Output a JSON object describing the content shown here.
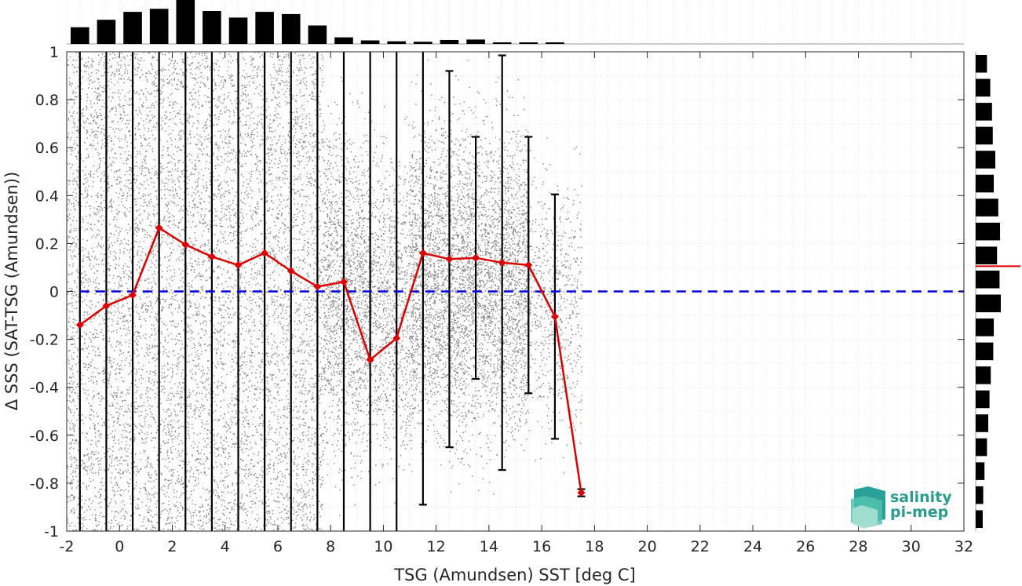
{
  "chart_data": {
    "type": "scatter",
    "xlabel": "TSG (Amundsen) SST [deg C]",
    "ylabel": "Δ SSS (SAT-TSG (Amundsen))",
    "xlim": [
      -2,
      32
    ],
    "ylim": [
      -1,
      1
    ],
    "x_ticks": [
      "-2",
      "0",
      "2",
      "4",
      "6",
      "8",
      "10",
      "12",
      "14",
      "16",
      "18",
      "20",
      "22",
      "24",
      "26",
      "28",
      "30",
      "32"
    ],
    "y_ticks": [
      "1",
      "0.8",
      "0.6",
      "0.4",
      "0.2",
      "0",
      "-0.2",
      "-0.4",
      "-0.6",
      "-0.8",
      "-1"
    ],
    "grid": true,
    "zero_line": {
      "y": 0,
      "color": "#0000dd",
      "style": "dashed"
    },
    "scatter_color": "#808080",
    "mean_color": "#dd0000",
    "error_bar_color": "#000000",
    "mean_series": {
      "x": [
        -1.5,
        -0.5,
        0.5,
        1.5,
        2.5,
        3.5,
        4.5,
        5.5,
        6.5,
        7.5,
        8.5,
        9.5,
        10.5,
        11.5,
        12.5,
        13.5,
        14.5,
        15.5,
        16.5,
        17.5
      ],
      "y": [
        -0.14,
        -0.06,
        -0.015,
        0.265,
        0.195,
        0.145,
        0.11,
        0.16,
        0.085,
        0.02,
        0.04,
        -0.285,
        -0.195,
        0.16,
        0.135,
        0.14,
        0.12,
        0.11,
        -0.105,
        -0.84
      ]
    },
    "error_bars": [
      {
        "x": -1.5,
        "low": -1,
        "high": 1
      },
      {
        "x": -0.5,
        "low": -1,
        "high": 1
      },
      {
        "x": 0.5,
        "low": -1,
        "high": 1
      },
      {
        "x": 1.5,
        "low": -1,
        "high": 1
      },
      {
        "x": 2.5,
        "low": -1,
        "high": 1
      },
      {
        "x": 3.5,
        "low": -1,
        "high": 1
      },
      {
        "x": 4.5,
        "low": -1,
        "high": 1
      },
      {
        "x": 5.5,
        "low": -1,
        "high": 1
      },
      {
        "x": 6.5,
        "low": -1,
        "high": 1
      },
      {
        "x": 7.5,
        "low": -1,
        "high": 1
      },
      {
        "x": 8.5,
        "low": -1,
        "high": 1
      },
      {
        "x": 9.5,
        "low": -1,
        "high": 1
      },
      {
        "x": 10.5,
        "low": -1,
        "high": 1
      },
      {
        "x": 11.5,
        "low": -0.89,
        "high": 1
      },
      {
        "x": 12.5,
        "low": -0.65,
        "high": 0.92
      },
      {
        "x": 13.5,
        "low": -0.365,
        "high": 0.645
      },
      {
        "x": 14.5,
        "low": -0.745,
        "high": 0.985
      },
      {
        "x": 15.5,
        "low": -0.425,
        "high": 0.645
      },
      {
        "x": 16.5,
        "low": -0.615,
        "high": 0.405
      },
      {
        "x": 17.5,
        "low": -0.855,
        "high": -0.825
      }
    ],
    "scatter_clusters": [
      {
        "x_range": [
          -2,
          7.7
        ],
        "y_range": [
          -1,
          1
        ],
        "weight": 1.0
      },
      {
        "x_range": [
          7.7,
          9.5
        ],
        "y_range": [
          -1,
          1
        ],
        "weight": 0.35
      },
      {
        "x_range": [
          9.5,
          11
        ],
        "y_range": [
          -1,
          0.9
        ],
        "weight": 0.25
      },
      {
        "x_range": [
          11,
          15.5
        ],
        "y_range": [
          -0.9,
          1
        ],
        "weight": 0.4
      },
      {
        "x_range": [
          15.5,
          17.5
        ],
        "y_range": [
          -0.87,
          0.75
        ],
        "weight": 0.15
      }
    ],
    "top_histogram": {
      "bins_x": [
        -2,
        -1,
        0,
        1,
        2,
        3,
        4,
        5,
        6,
        7,
        8,
        9,
        10,
        11,
        12,
        13,
        14,
        15,
        16,
        17,
        18,
        19,
        20,
        21,
        22,
        23,
        24,
        25,
        26,
        27,
        28,
        29,
        30,
        31,
        32
      ],
      "counts": [
        0.38,
        0.55,
        0.73,
        0.8,
        1.0,
        0.75,
        0.6,
        0.73,
        0.68,
        0.42,
        0.15,
        0.08,
        0.06,
        0.05,
        0.09,
        0.1,
        0.03,
        0.03,
        0.02,
        0,
        0,
        0,
        0,
        0,
        0,
        0,
        0,
        0,
        0,
        0,
        0,
        0,
        0,
        0
      ]
    },
    "right_histogram": {
      "bins_y": [
        1,
        0.9,
        0.8,
        0.7,
        0.6,
        0.5,
        0.4,
        0.3,
        0.2,
        0.1,
        0,
        -0.1,
        -0.2,
        -0.3,
        -0.4,
        -0.5,
        -0.6,
        -0.7,
        -0.8,
        -0.9,
        -1
      ],
      "counts": [
        0.45,
        0.58,
        0.65,
        0.68,
        0.78,
        0.72,
        0.9,
        0.97,
        0.85,
        0.95,
        1.0,
        0.72,
        0.7,
        0.6,
        0.55,
        0.5,
        0.45,
        0.35,
        0.3,
        0.28
      ]
    },
    "right_marker": {
      "y": 0.105,
      "color": "#dd0000"
    }
  },
  "logo": {
    "line1": "salinity",
    "line2": "pi-mep"
  }
}
